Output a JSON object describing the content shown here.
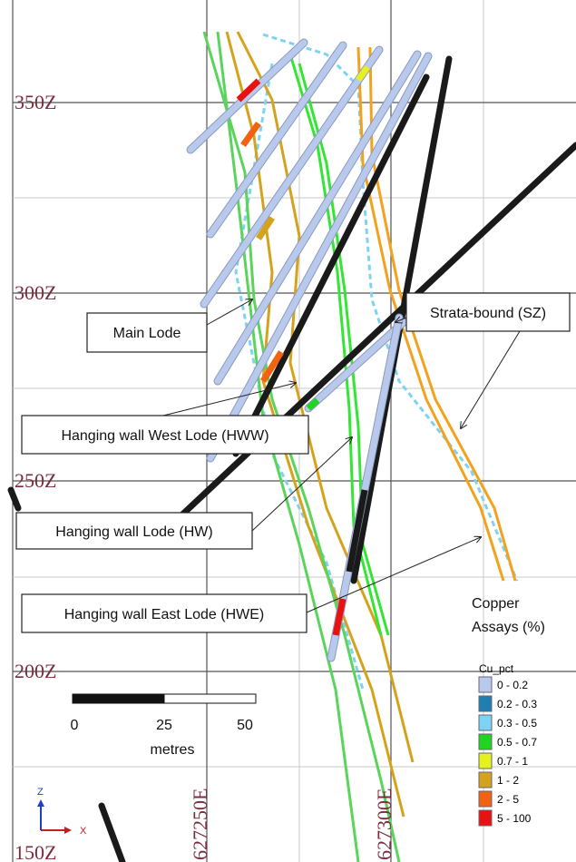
{
  "grid_labels": {
    "northing": [
      "350Z",
      "300Z",
      "250Z",
      "200Z",
      "150Z"
    ],
    "easting": [
      "627250E",
      "627300E"
    ]
  },
  "callouts": [
    "Main Lode",
    "Strata-bound (SZ)",
    "Hanging wall West Lode (HWW)",
    "Hanging wall Lode (HW)",
    "Hanging wall East Lode (HWE)"
  ],
  "legend": {
    "heading": [
      "Copper",
      "Assays (%)"
    ],
    "title": "Cu_pct",
    "entries": [
      {
        "label": "0  -  0.2",
        "color": "#b9c9ec"
      },
      {
        "label": "0.2  -  0.3",
        "color": "#1f7db0"
      },
      {
        "label": "0.3  -  0.5",
        "color": "#7fd3f2"
      },
      {
        "label": "0.5  -  0.7",
        "color": "#22d422"
      },
      {
        "label": "0.7  -  1",
        "color": "#e6f21e"
      },
      {
        "label": "1  -  2",
        "color": "#d4a21c"
      },
      {
        "label": "2  -  5",
        "color": "#f26210"
      },
      {
        "label": "5  -  100",
        "color": "#e81212"
      }
    ]
  },
  "scale_bar": {
    "ticks": [
      "0",
      "25",
      "50"
    ],
    "unit": "metres"
  },
  "axes_icon": [
    "Z",
    "X"
  ]
}
